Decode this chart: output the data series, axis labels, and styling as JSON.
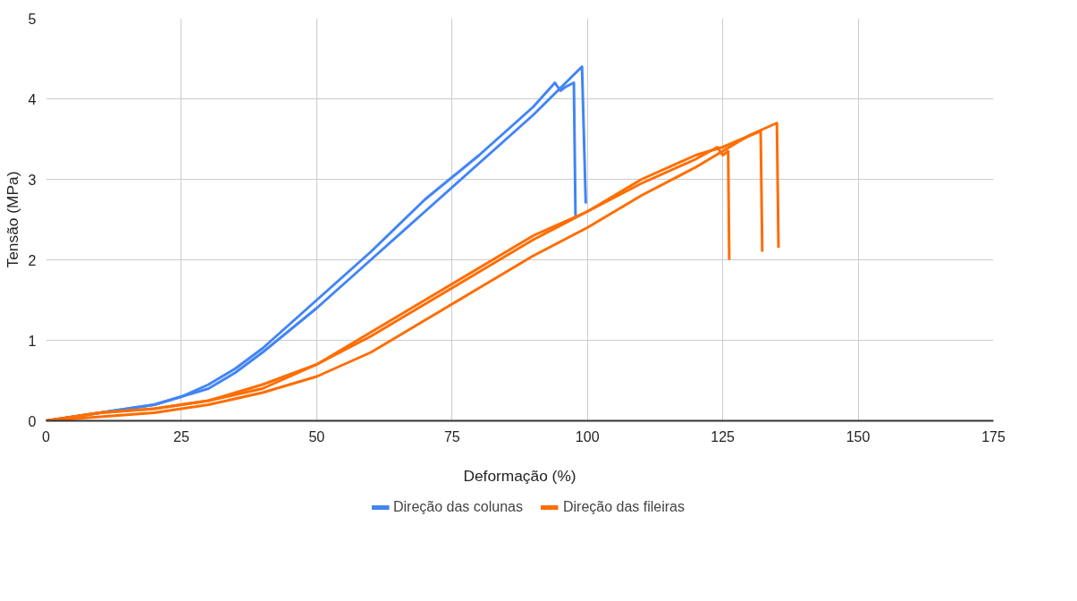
{
  "chart_data": {
    "type": "line",
    "xlabel": "Deformação (%)",
    "ylabel": "Tensão (MPa)",
    "xlim": [
      0,
      175
    ],
    "xticks": [
      0,
      25,
      50,
      75,
      100,
      125,
      150,
      175
    ],
    "ylim": [
      0,
      5
    ],
    "yticks": [
      0,
      1,
      2,
      3,
      4,
      5
    ],
    "grid": true,
    "legend": "bottom",
    "marker": "none",
    "line_style": "solid",
    "series": [
      {
        "name": "Direção das colunas",
        "color": "#4285f4",
        "x": [
          0,
          10,
          20,
          25,
          30,
          35,
          40,
          50,
          60,
          70,
          80,
          90,
          94,
          95,
          96,
          97.5,
          97.8
        ],
        "values": [
          0,
          0.1,
          0.2,
          0.3,
          0.45,
          0.65,
          0.9,
          1.5,
          2.1,
          2.75,
          3.3,
          3.9,
          4.2,
          4.1,
          4.15,
          4.2,
          2.55
        ]
      },
      {
        "color": "#4285f4",
        "x": [
          0,
          10,
          20,
          25,
          30,
          35,
          40,
          50,
          60,
          70,
          80,
          90,
          99,
          99.7
        ],
        "values": [
          0,
          0.1,
          0.2,
          0.3,
          0.4,
          0.6,
          0.85,
          1.4,
          2.0,
          2.6,
          3.2,
          3.8,
          4.4,
          2.7
        ]
      },
      {
        "name": "Direção das fileiras",
        "color": "#ff6d01",
        "x": [
          0,
          10,
          20,
          25,
          30,
          40,
          50,
          60,
          70,
          80,
          90,
          100,
          110,
          120,
          124,
          125,
          126,
          126.2
        ],
        "values": [
          0,
          0.1,
          0.15,
          0.2,
          0.25,
          0.4,
          0.7,
          1.05,
          1.45,
          1.85,
          2.25,
          2.6,
          2.95,
          3.25,
          3.4,
          3.3,
          3.35,
          2.0
        ]
      },
      {
        "color": "#ff6d01",
        "x": [
          0,
          10,
          20,
          25,
          30,
          40,
          50,
          60,
          70,
          80,
          90,
          100,
          110,
          120,
          125,
          132,
          132.3
        ],
        "values": [
          0,
          0.1,
          0.15,
          0.2,
          0.25,
          0.45,
          0.7,
          1.1,
          1.5,
          1.9,
          2.3,
          2.6,
          3.0,
          3.3,
          3.4,
          3.6,
          2.1
        ]
      },
      {
        "color": "#ff6d01",
        "x": [
          0,
          10,
          20,
          25,
          30,
          40,
          50,
          60,
          70,
          80,
          90,
          100,
          110,
          120,
          130,
          135,
          135.3
        ],
        "values": [
          0,
          0.05,
          0.1,
          0.15,
          0.2,
          0.35,
          0.55,
          0.85,
          1.25,
          1.65,
          2.05,
          2.4,
          2.8,
          3.15,
          3.55,
          3.7,
          2.15
        ]
      }
    ]
  }
}
